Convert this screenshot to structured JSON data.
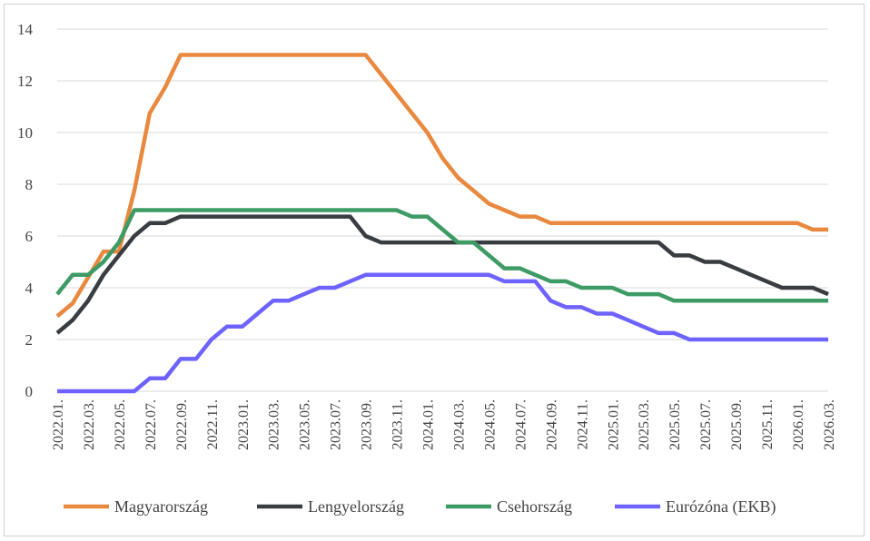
{
  "chart_data": {
    "type": "line",
    "title": "",
    "xlabel": "",
    "ylabel": "",
    "ylim": [
      0,
      14
    ],
    "yticks": [
      "0",
      "2",
      "4",
      "6",
      "8",
      "10",
      "12",
      "14"
    ],
    "grid": true,
    "legend": "bottom",
    "x": [
      "2022.01.",
      "2022.02.",
      "2022.03.",
      "2022.04.",
      "2022.05.",
      "2022.06.",
      "2022.07.",
      "2022.08.",
      "2022.09.",
      "2022.10.",
      "2022.11.",
      "2022.12.",
      "2023.01.",
      "2023.02.",
      "2023.03.",
      "2023.04.",
      "2023.05.",
      "2023.06.",
      "2023.07.",
      "2023.08.",
      "2023.09.",
      "2023.10.",
      "2023.11.",
      "2023.12.",
      "2024.01.",
      "2024.02.",
      "2024.03.",
      "2024.04.",
      "2024.05.",
      "2024.06.",
      "2024.07.",
      "2024.08.",
      "2024.09.",
      "2024.10.",
      "2024.11.",
      "2024.12.",
      "2025.01.",
      "2025.02.",
      "2025.03.",
      "2025.04.",
      "2025.05.",
      "2025.06.",
      "2025.07.",
      "2025.08.",
      "2025.09.",
      "2025.10.",
      "2025.11.",
      "2025.12.",
      "2026.01.",
      "2026.02.",
      "2026.03."
    ],
    "series": [
      {
        "name": "Magyarország",
        "color": "#E8893F",
        "values": [
          2.9,
          3.4,
          4.4,
          5.4,
          5.4,
          7.75,
          10.75,
          11.75,
          13,
          13,
          13,
          13,
          13,
          13,
          13,
          13,
          13,
          13,
          13,
          13,
          13,
          12.25,
          11.5,
          10.75,
          10,
          9,
          8.25,
          7.75,
          7.25,
          7,
          6.75,
          6.75,
          6.5,
          6.5,
          6.5,
          6.5,
          6.5,
          6.5,
          6.5,
          6.5,
          6.5,
          6.5,
          6.5,
          6.5,
          6.5,
          6.5,
          6.5,
          6.5,
          6.5,
          6.25,
          6.25
        ]
      },
      {
        "name": "Lengyelország",
        "color": "#393C41",
        "values": [
          2.25,
          2.75,
          3.5,
          4.5,
          5.25,
          6,
          6.5,
          6.5,
          6.75,
          6.75,
          6.75,
          6.75,
          6.75,
          6.75,
          6.75,
          6.75,
          6.75,
          6.75,
          6.75,
          6.75,
          6,
          5.75,
          5.75,
          5.75,
          5.75,
          5.75,
          5.75,
          5.75,
          5.75,
          5.75,
          5.75,
          5.75,
          5.75,
          5.75,
          5.75,
          5.75,
          5.75,
          5.75,
          5.75,
          5.75,
          5.25,
          5.25,
          5,
          5,
          4.75,
          4.5,
          4.25,
          4,
          4,
          4,
          3.75
        ]
      },
      {
        "name": "Csehország",
        "color": "#3E9B65",
        "values": [
          3.75,
          4.5,
          4.5,
          5,
          5.75,
          7,
          7,
          7,
          7,
          7,
          7,
          7,
          7,
          7,
          7,
          7,
          7,
          7,
          7,
          7,
          7,
          7,
          7,
          6.75,
          6.75,
          6.25,
          5.75,
          5.75,
          5.25,
          4.75,
          4.75,
          4.5,
          4.25,
          4.25,
          4,
          4,
          4,
          3.75,
          3.75,
          3.75,
          3.5,
          3.5,
          3.5,
          3.5,
          3.5,
          3.5,
          3.5,
          3.5,
          3.5,
          3.5,
          3.5
        ]
      },
      {
        "name": "Eurózóna (EKB)",
        "color": "#6F63FF",
        "values": [
          0,
          0,
          0,
          0,
          0,
          0,
          0.5,
          0.5,
          1.25,
          1.25,
          2,
          2.5,
          2.5,
          3,
          3.5,
          3.5,
          3.75,
          4,
          4,
          4.25,
          4.5,
          4.5,
          4.5,
          4.5,
          4.5,
          4.5,
          4.5,
          4.5,
          4.5,
          4.25,
          4.25,
          4.25,
          3.5,
          3.25,
          3.25,
          3,
          3,
          2.75,
          2.5,
          2.25,
          2.25,
          2,
          2,
          2,
          2,
          2,
          2,
          2,
          2,
          2,
          2
        ]
      }
    ]
  }
}
